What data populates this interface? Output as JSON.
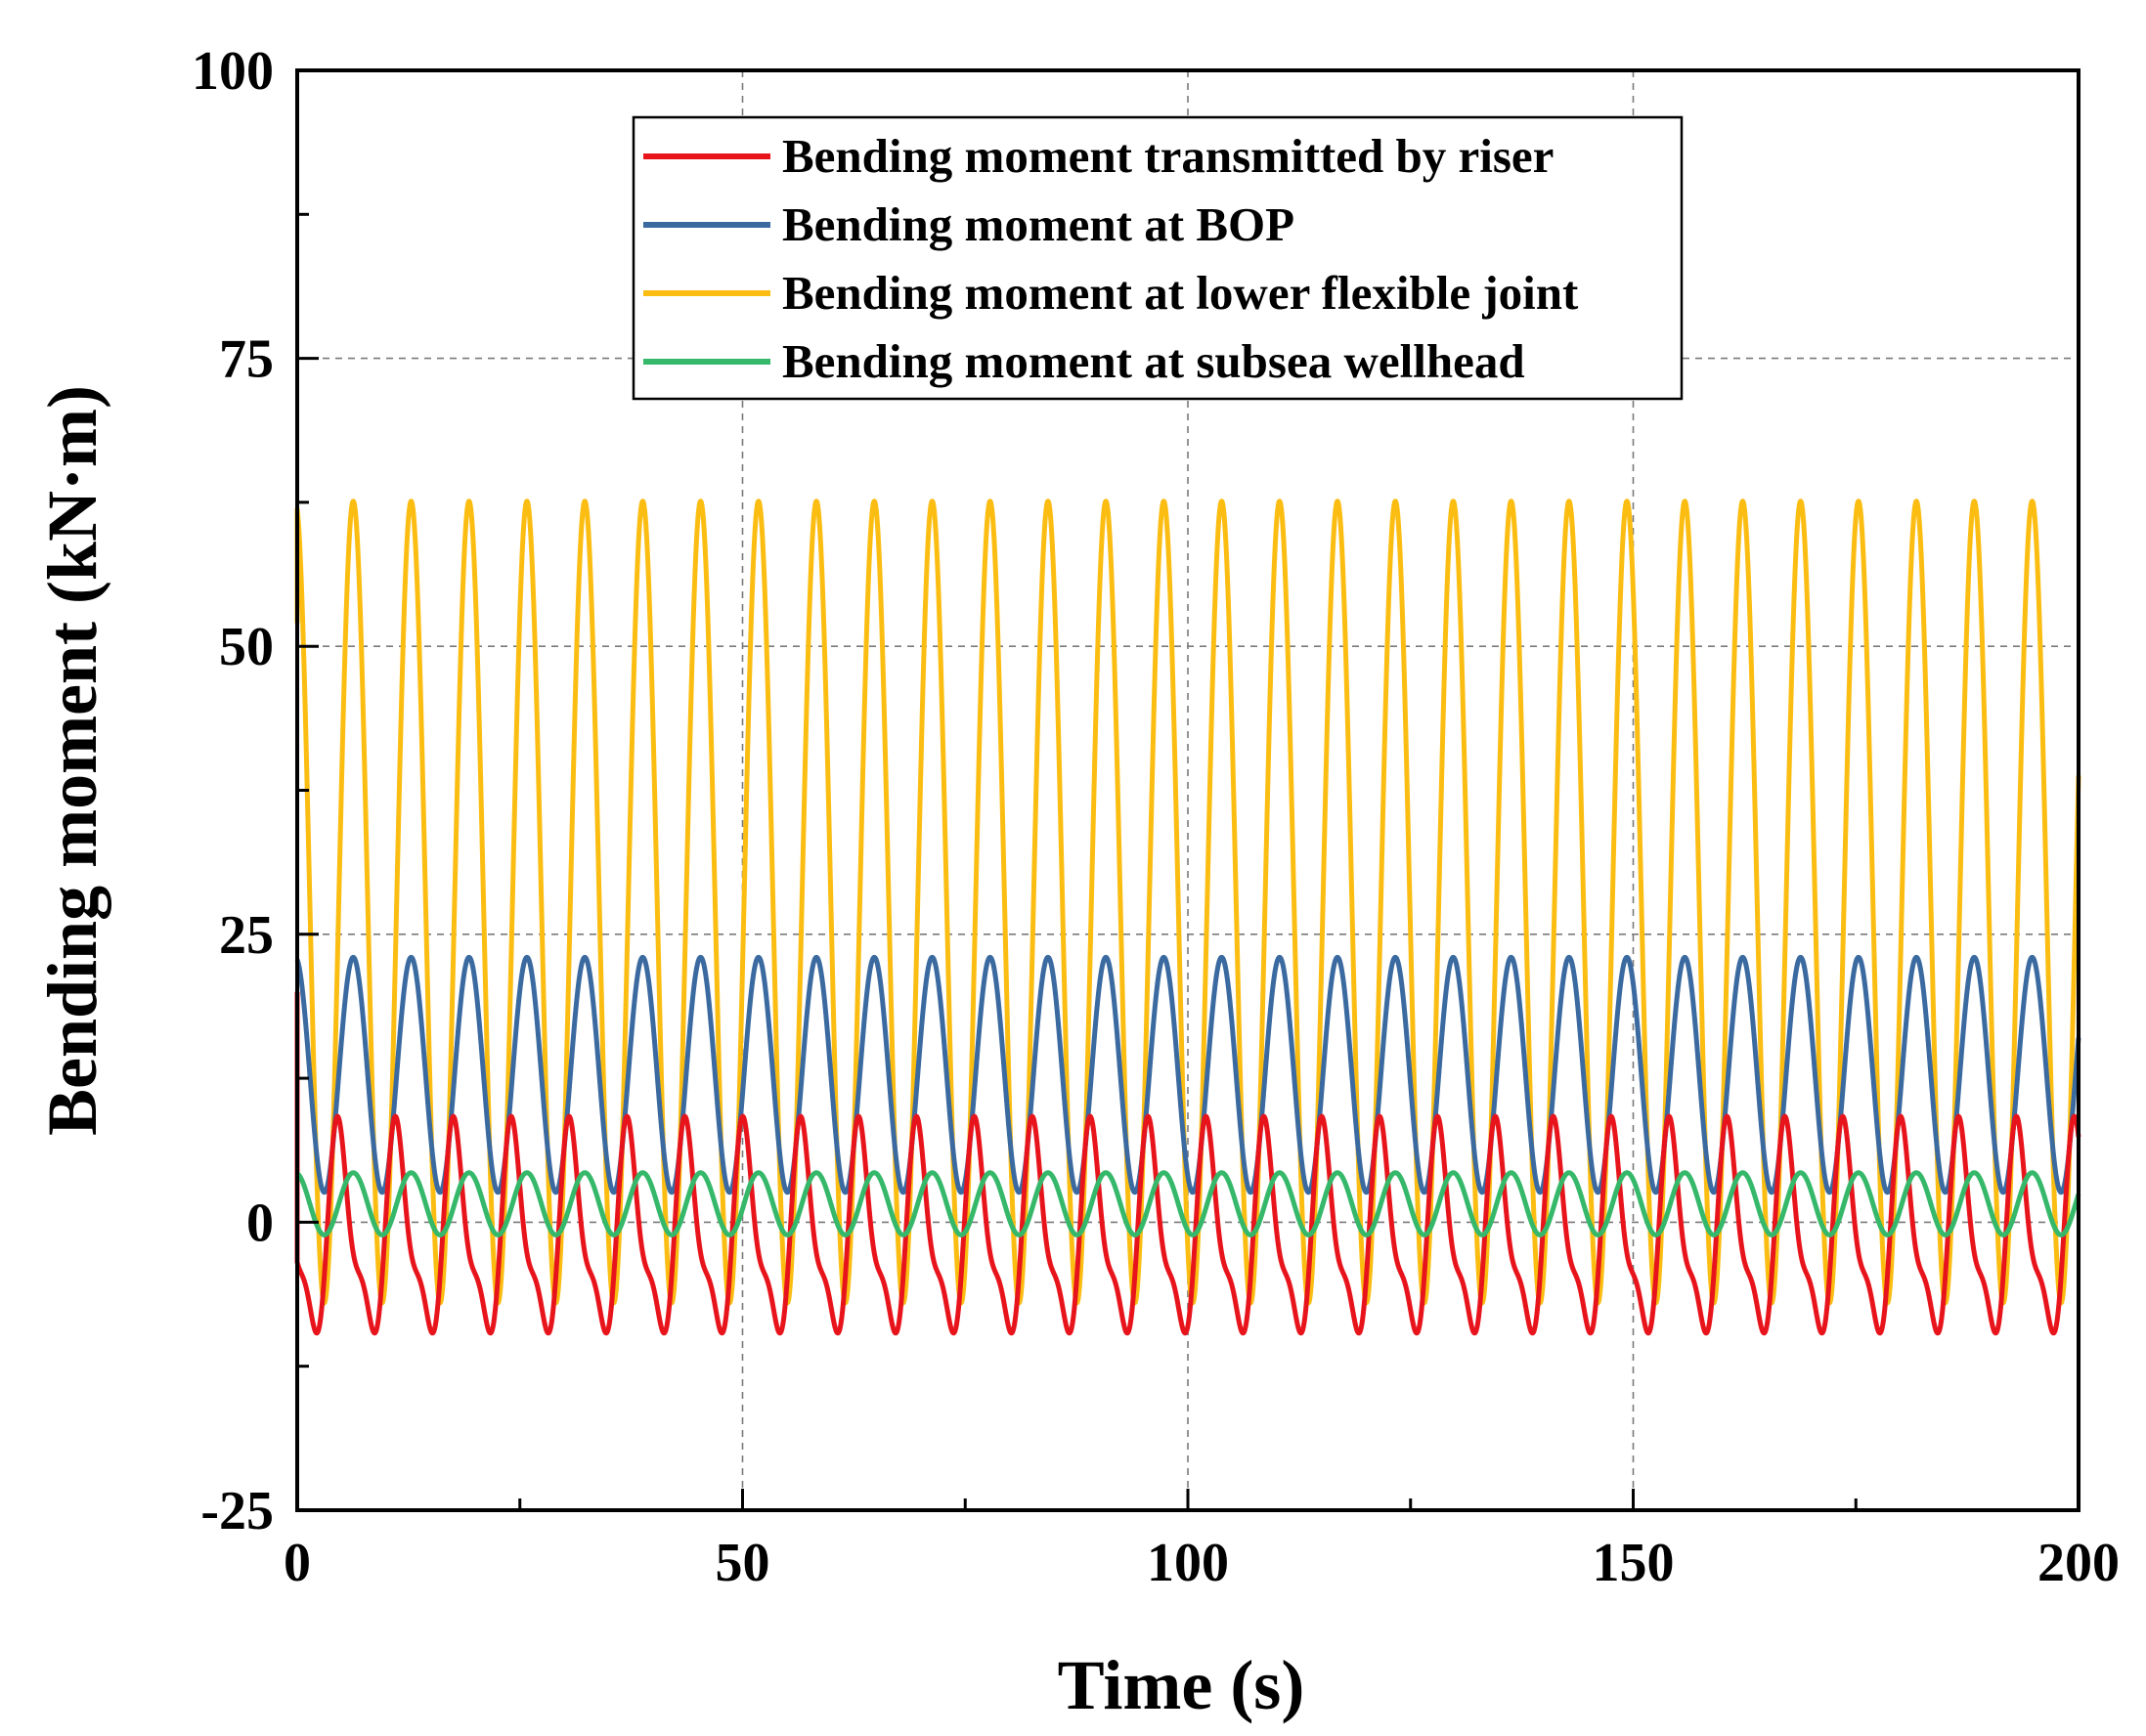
{
  "chart_data": {
    "type": "line",
    "title": "",
    "xlabel": "Time (s)",
    "ylabel": "Bending moment (kN·m)",
    "xlim": [
      0,
      200
    ],
    "ylim": [
      -25,
      100
    ],
    "xticks": [
      0,
      50,
      100,
      150,
      200
    ],
    "yticks": [
      -25,
      0,
      25,
      50,
      75,
      100
    ],
    "xtick_labels": [
      "0",
      "50",
      "100",
      "150",
      "200"
    ],
    "ytick_labels": [
      "-25",
      "0",
      "25",
      "50",
      "75",
      "100"
    ],
    "grid": true,
    "legend_position": "top-center",
    "period_s": 6.5,
    "series": [
      {
        "name": "Bending moment transmitted by riser",
        "color": "#e8141c",
        "offset": -1.4,
        "amplitude": 8.2,
        "phase": 1.65,
        "start_value": 20,
        "second_harmonic": 0.35
      },
      {
        "name": "Bending moment at BOP",
        "color": "#3b6aa0",
        "offset": 12.8,
        "amplitude": 10.2,
        "phase": 0.2
      },
      {
        "name": "Bending moment at lower flexible joint",
        "color": "#fbbd12",
        "offset": 27.8,
        "amplitude": 34.8,
        "phase": 0.2,
        "start_value": 52
      },
      {
        "name": "Bending moment at subsea wellhead",
        "color": "#36b86a",
        "offset": 1.6,
        "amplitude": 2.7,
        "phase": 0.2
      }
    ]
  }
}
